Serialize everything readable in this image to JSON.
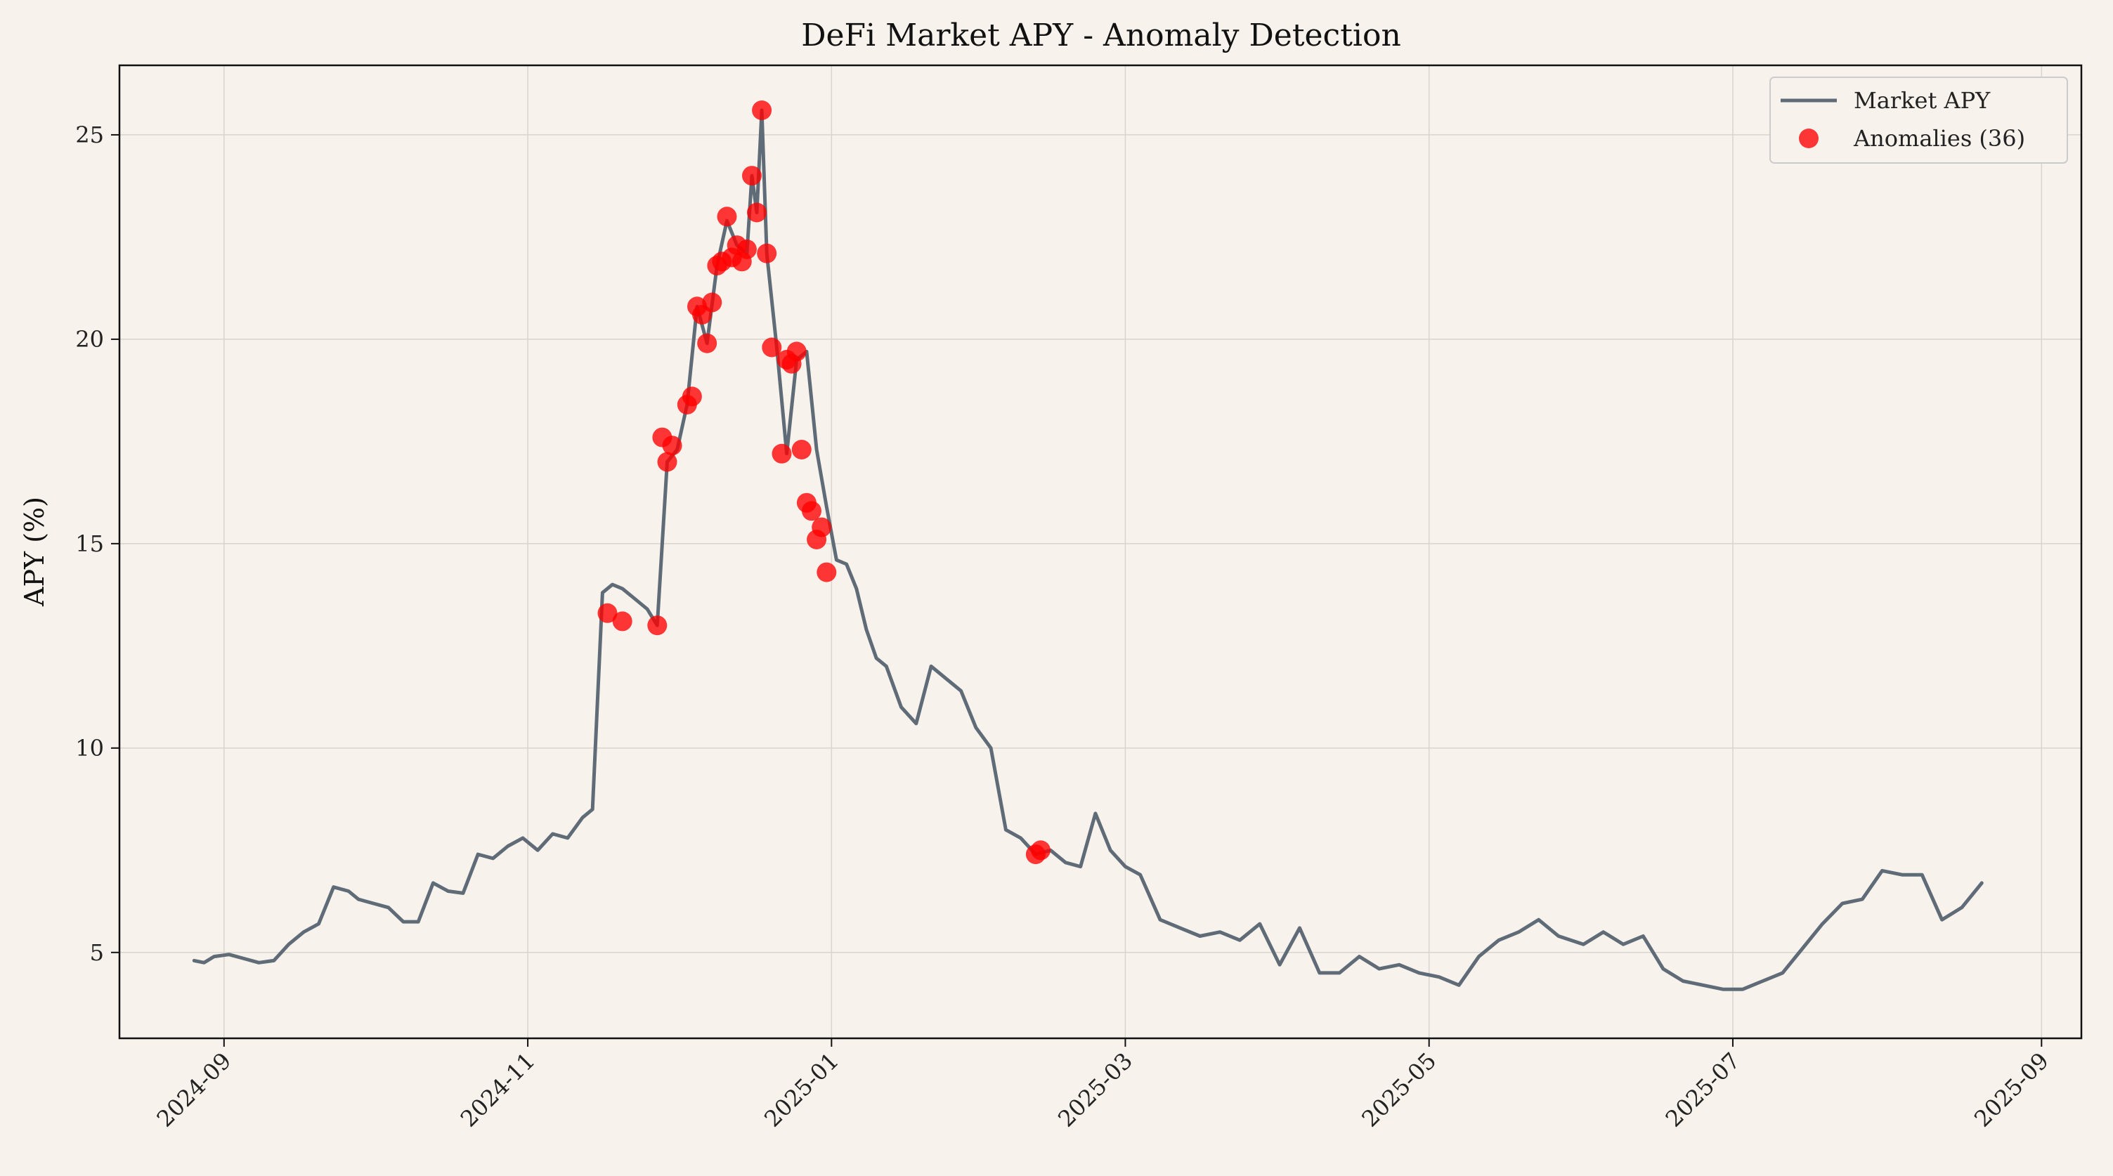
{
  "chart_data": {
    "type": "line",
    "title": "DeFi Market APY - Anomaly Detection",
    "xlabel": "",
    "ylabel": "APY (%)",
    "x_ticks": [
      "2024-09",
      "2024-11",
      "2025-01",
      "2025-03",
      "2025-05",
      "2025-07",
      "2025-09"
    ],
    "y_ticks": [
      5,
      10,
      15,
      20,
      25
    ],
    "ylim": [
      2.9,
      26.7
    ],
    "xlim": [
      "2024-08-11",
      "2025-09-09"
    ],
    "grid": true,
    "legend": {
      "placement": "top-right",
      "entries": [
        "Market APY",
        "Anomalies (36)"
      ]
    },
    "colors": {
      "line": "#5f6b76",
      "anomaly": "#ff0000",
      "background": "#f7f2ec"
    },
    "series": [
      {
        "name": "Market APY",
        "kind": "line",
        "x": [
          "2024-08-26",
          "2024-08-28",
          "2024-08-30",
          "2024-09-02",
          "2024-09-05",
          "2024-09-08",
          "2024-09-11",
          "2024-09-14",
          "2024-09-17",
          "2024-09-20",
          "2024-09-23",
          "2024-09-26",
          "2024-09-28",
          "2024-10-01",
          "2024-10-04",
          "2024-10-07",
          "2024-10-10",
          "2024-10-13",
          "2024-10-16",
          "2024-10-19",
          "2024-10-22",
          "2024-10-25",
          "2024-10-28",
          "2024-10-31",
          "2024-11-03",
          "2024-11-06",
          "2024-11-09",
          "2024-11-12",
          "2024-11-14",
          "2024-11-16",
          "2024-11-18",
          "2024-11-20",
          "2024-11-22",
          "2024-11-25",
          "2024-11-27",
          "2024-11-29",
          "2024-12-01",
          "2024-12-03",
          "2024-12-05",
          "2024-12-07",
          "2024-12-09",
          "2024-12-11",
          "2024-12-13",
          "2024-12-15",
          "2024-12-16",
          "2024-12-17",
          "2024-12-18",
          "2024-12-19",
          "2024-12-21",
          "2024-12-23",
          "2024-12-25",
          "2024-12-27",
          "2024-12-29",
          "2024-12-31",
          "2025-01-02",
          "2025-01-04",
          "2025-01-06",
          "2025-01-08",
          "2025-01-10",
          "2025-01-12",
          "2025-01-15",
          "2025-01-18",
          "2025-01-21",
          "2025-01-24",
          "2025-01-27",
          "2025-01-30",
          "2025-02-02",
          "2025-02-05",
          "2025-02-08",
          "2025-02-11",
          "2025-02-14",
          "2025-02-17",
          "2025-02-20",
          "2025-02-23",
          "2025-02-26",
          "2025-03-01",
          "2025-03-04",
          "2025-03-08",
          "2025-03-12",
          "2025-03-16",
          "2025-03-20",
          "2025-03-24",
          "2025-03-28",
          "2025-04-01",
          "2025-04-05",
          "2025-04-09",
          "2025-04-13",
          "2025-04-17",
          "2025-04-21",
          "2025-04-25",
          "2025-04-29",
          "2025-05-03",
          "2025-05-07",
          "2025-05-11",
          "2025-05-15",
          "2025-05-19",
          "2025-05-23",
          "2025-05-27",
          "2025-06-01",
          "2025-06-05",
          "2025-06-09",
          "2025-06-13",
          "2025-06-17",
          "2025-06-21",
          "2025-06-25",
          "2025-06-29",
          "2025-07-03",
          "2025-07-07",
          "2025-07-11",
          "2025-07-15",
          "2025-07-19",
          "2025-07-23",
          "2025-07-27",
          "2025-07-31",
          "2025-08-04",
          "2025-08-08",
          "2025-08-12",
          "2025-08-16",
          "2025-08-20"
        ],
        "y": [
          4.8,
          4.75,
          4.9,
          4.95,
          4.85,
          4.75,
          4.8,
          5.2,
          5.5,
          5.7,
          6.6,
          6.5,
          6.3,
          6.2,
          6.1,
          5.75,
          5.75,
          6.7,
          6.5,
          6.45,
          7.4,
          7.3,
          7.6,
          7.8,
          7.5,
          7.9,
          7.8,
          8.3,
          8.5,
          13.8,
          14.0,
          13.9,
          13.7,
          13.4,
          13.0,
          17.0,
          17.3,
          18.4,
          20.8,
          19.9,
          21.8,
          22.9,
          22.3,
          22.1,
          24.0,
          23.1,
          25.6,
          22.1,
          19.8,
          17.2,
          19.5,
          19.7,
          17.3,
          15.9,
          14.6,
          14.5,
          13.9,
          12.9,
          12.2,
          12.0,
          11.0,
          10.6,
          12.0,
          11.7,
          11.4,
          10.5,
          10.0,
          8.0,
          7.8,
          7.4,
          7.5,
          7.2,
          7.1,
          8.4,
          7.5,
          7.1,
          6.9,
          5.8,
          5.6,
          5.4,
          5.5,
          5.3,
          5.7,
          4.7,
          5.6,
          4.5,
          4.5,
          4.9,
          4.6,
          4.7,
          4.5,
          4.4,
          4.2,
          4.9,
          5.3,
          5.5,
          5.8,
          5.4,
          5.2,
          5.5,
          5.2,
          5.4,
          4.6,
          4.3,
          4.2,
          4.1,
          4.1,
          4.3,
          4.5,
          5.1,
          5.7,
          6.2,
          6.3,
          7.0,
          6.9,
          6.9,
          5.8,
          6.1,
          6.7
        ]
      },
      {
        "name": "Anomalies (36)",
        "kind": "scatter",
        "x": [
          "2024-11-17",
          "2024-11-20",
          "2024-11-27",
          "2024-11-28",
          "2024-11-29",
          "2024-11-30",
          "2024-12-03",
          "2024-12-04",
          "2024-12-05",
          "2024-12-06",
          "2024-12-07",
          "2024-12-08",
          "2024-12-09",
          "2024-12-10",
          "2024-12-11",
          "2024-12-12",
          "2024-12-13",
          "2024-12-14",
          "2024-12-15",
          "2024-12-16",
          "2024-12-17",
          "2024-12-18",
          "2024-12-19",
          "2024-12-20",
          "2024-12-22",
          "2024-12-23",
          "2024-12-24",
          "2024-12-25",
          "2024-12-26",
          "2024-12-27",
          "2024-12-28",
          "2024-12-29",
          "2024-12-30",
          "2024-12-31",
          "2025-02-11",
          "2025-02-12"
        ],
        "y": [
          13.3,
          13.1,
          13.0,
          17.6,
          17.0,
          17.4,
          18.4,
          18.6,
          20.8,
          20.6,
          19.9,
          20.9,
          21.8,
          21.9,
          23.0,
          22.0,
          22.3,
          21.9,
          22.2,
          24.0,
          23.1,
          25.6,
          22.1,
          19.8,
          17.2,
          19.5,
          19.4,
          19.7,
          17.3,
          16.0,
          15.8,
          15.1,
          15.4,
          14.3,
          7.4,
          7.5
        ]
      }
    ]
  }
}
